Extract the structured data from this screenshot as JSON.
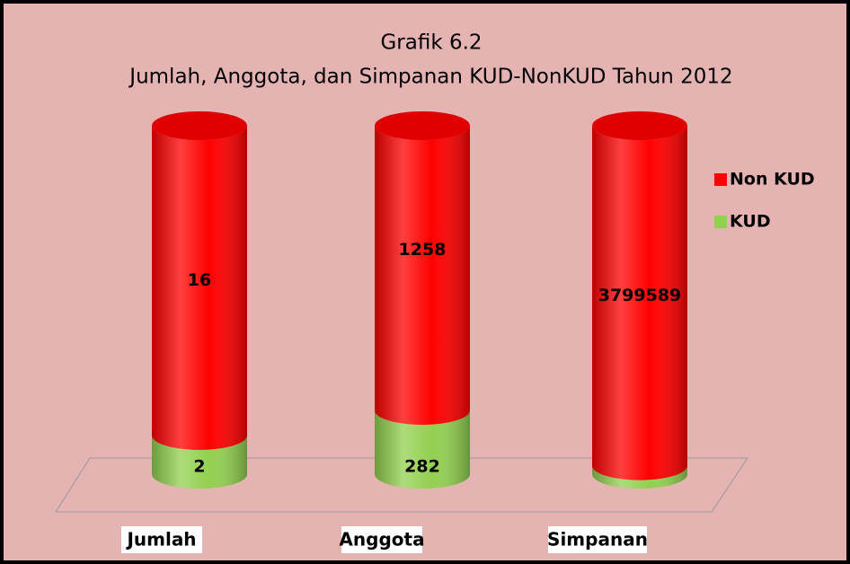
{
  "chart_data": {
    "type": "bar",
    "stacking": "percent",
    "title": "Grafik 6.2",
    "subtitle": "Jumlah, Anggota, dan Simpanan KUD-NonKUD Tahun 2012",
    "categories": [
      "Jumlah",
      "Anggota",
      "Simpanan"
    ],
    "series": [
      {
        "name": "KUD",
        "color": "#92d050",
        "values": [
          2,
          282,
          94601
        ]
      },
      {
        "name": "Non KUD",
        "color": "#ff0000",
        "values": [
          16,
          1258,
          3799589
        ]
      }
    ],
    "legend": "right"
  }
}
